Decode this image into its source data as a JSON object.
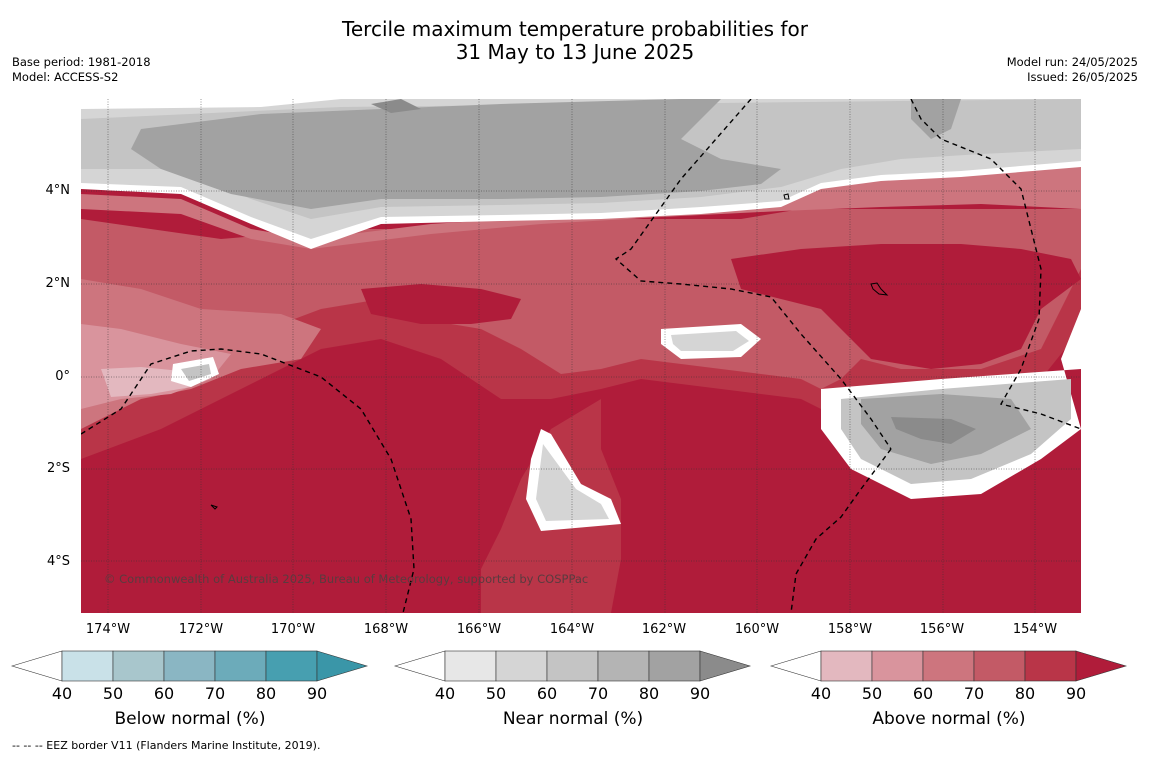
{
  "title_line1": "Tercile maximum temperature probabilities for",
  "title_line2": "31 May to 13 June 2025",
  "meta": {
    "base_period": "Base period: 1981-2018",
    "model": "Model: ACCESS-S2",
    "model_run": "Model run: 24/05/2025",
    "issued": "Issued: 26/05/2025"
  },
  "copyright": "© Commonwealth of Australia 2025, Bureau of Meteorology, supported by COSPPac",
  "lat_labels": [
    "4°N",
    "2°N",
    "0°",
    "2°S",
    "4°S"
  ],
  "lon_labels": [
    "174°W",
    "172°W",
    "170°W",
    "168°W",
    "166°W",
    "164°W",
    "162°W",
    "160°W",
    "158°W",
    "156°W",
    "154°W"
  ],
  "colorbars": [
    {
      "title": "Below normal (%)",
      "ticks": [
        "40",
        "50",
        "60",
        "70",
        "80",
        "90"
      ],
      "colors": [
        "#ffffff",
        "#c9e1e8",
        "#a8c6cc",
        "#8ab6c3",
        "#6cabba",
        "#479fb0",
        "#3a96a8"
      ]
    },
    {
      "title": "Near normal (%)",
      "ticks": [
        "40",
        "50",
        "60",
        "70",
        "80",
        "90"
      ],
      "colors": [
        "#ffffff",
        "#e7e7e7",
        "#d5d5d5",
        "#c4c4c4",
        "#b4b4b4",
        "#a2a2a2",
        "#8b8b8b"
      ]
    },
    {
      "title": "Above normal (%)",
      "ticks": [
        "40",
        "50",
        "60",
        "70",
        "80",
        "90"
      ],
      "colors": [
        "#ffffff",
        "#e3b8bf",
        "#d9949d",
        "#cd757e",
        "#c35a66",
        "#b93548",
        "#b01c3a"
      ]
    }
  ],
  "footer": "--  --  -- EEZ border V11 (Flanders Marine Institute, 2019).",
  "palette": {
    "above_40": "#e3b8bf",
    "above_50": "#d9949d",
    "above_60": "#cd757e",
    "above_70": "#c35a66",
    "above_80": "#b93548",
    "above_90": "#b01c3a",
    "near_40": "#e7e7e7",
    "near_50": "#d5d5d5",
    "near_60": "#c4c4c4",
    "near_70": "#b4b4b4",
    "near_80": "#a2a2a2",
    "near_90": "#8b8b8b"
  }
}
